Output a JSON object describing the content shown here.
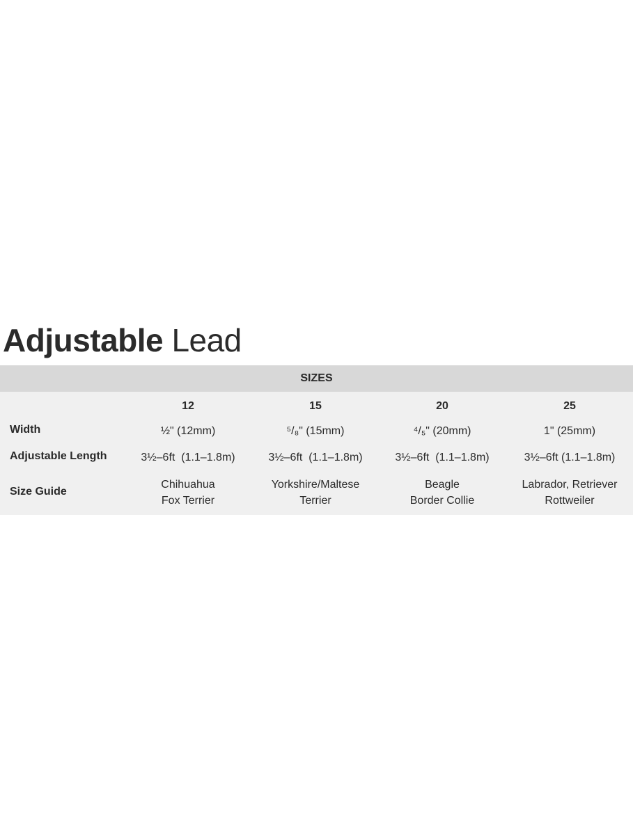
{
  "title": {
    "bold": "Adjustable",
    "light": "Lead"
  },
  "table": {
    "header": "SIZES",
    "sizes": [
      "12",
      "15",
      "20",
      "25"
    ],
    "rows": [
      {
        "label": "Width",
        "values": [
          "½\" (12mm)",
          "⁵/₈\" (15mm)",
          "⁴/₅\" (20mm)",
          "1\" (25mm)"
        ]
      },
      {
        "label": "Adjustable Length",
        "values": [
          "3½–6ft  (1.1–1.8m)",
          "3½–6ft  (1.1–1.8m)",
          "3½–6ft  (1.1–1.8m)",
          "3½–6ft (1.1–1.8m)"
        ]
      },
      {
        "label": "Size Guide",
        "values": [
          [
            "Chihuahua",
            "Fox Terrier"
          ],
          [
            "Yorkshire/Maltese",
            "Terrier"
          ],
          [
            "Beagle",
            "Border Collie"
          ],
          [
            "Labrador, Retriever",
            "Rottweiler"
          ]
        ]
      }
    ]
  }
}
